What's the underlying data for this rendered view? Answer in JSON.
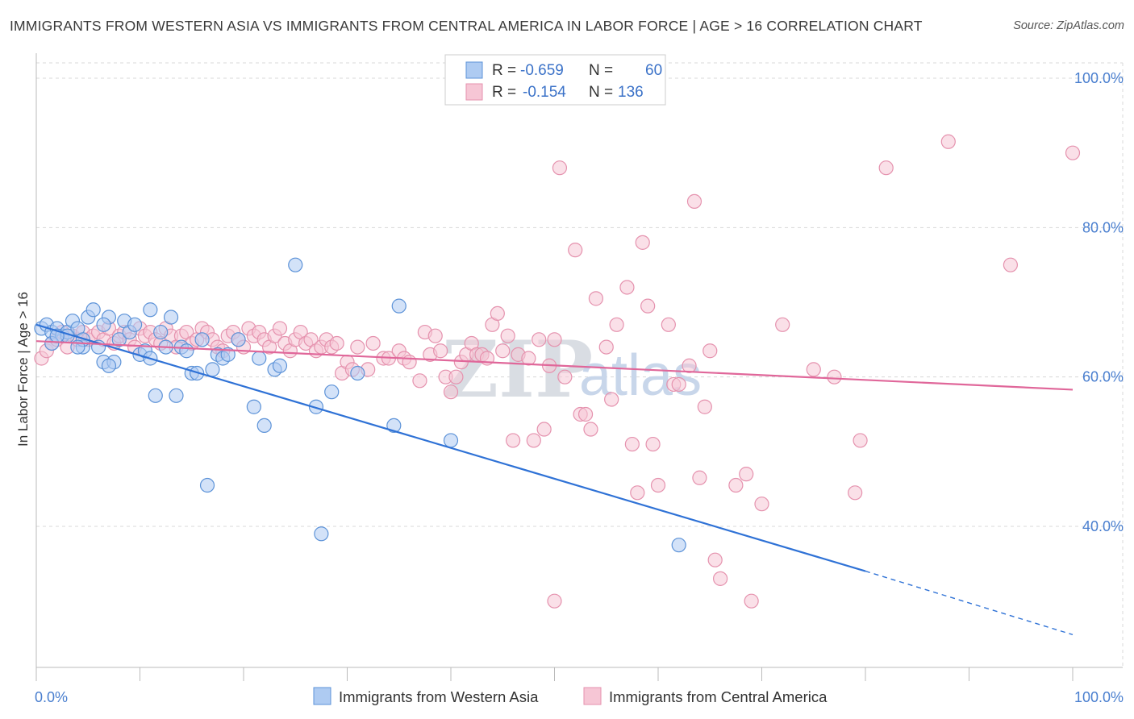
{
  "header": {
    "title": "IMMIGRANTS FROM WESTERN ASIA VS IMMIGRANTS FROM CENTRAL AMERICA IN LABOR FORCE | AGE > 16 CORRELATION CHART",
    "source": "Source: ZipAtlas.com"
  },
  "watermark": {
    "zip": "ZIP",
    "atlas": "atlas"
  },
  "legend": {
    "rows": [
      {
        "r_label": "R =",
        "r_value": "-0.659",
        "n_label": "N =",
        "n_value": "60"
      },
      {
        "r_label": "R =",
        "r_value": "-0.154",
        "n_label": "N =",
        "n_value": "136"
      }
    ]
  },
  "colors": {
    "blue_fill": "#aecbf2",
    "blue_stroke": "#5d93d8",
    "blue_line": "#2f72d6",
    "pink_fill": "#f6c6d5",
    "pink_stroke": "#e592ae",
    "pink_line": "#e0679a",
    "grid": "#d8d8d8",
    "tick_label": "#4a7fcf"
  },
  "chart_data": {
    "type": "scatter",
    "title": "IMMIGRANTS FROM WESTERN ASIA VS IMMIGRANTS FROM CENTRAL AMERICA IN LABOR FORCE | AGE > 16 CORRELATION CHART",
    "xlabel": "",
    "ylabel": "In Labor Force | Age > 16",
    "xlim": [
      0,
      100
    ],
    "ylim": [
      20,
      102
    ],
    "x_ticks": [
      {
        "value": 0,
        "label": "0.0%"
      },
      {
        "value": 100,
        "label": "100.0%"
      }
    ],
    "y_ticks": [
      {
        "value": 40,
        "label": "40.0%"
      },
      {
        "value": 60,
        "label": "60.0%"
      },
      {
        "value": 80,
        "label": "80.0%"
      },
      {
        "value": 100,
        "label": "100.0%"
      }
    ],
    "grid": true,
    "legend_position": "top-center",
    "series": [
      {
        "name": "Immigrants from Western Asia",
        "color": "#aecbf2",
        "points": [
          [
            0.5,
            66.5
          ],
          [
            1,
            67
          ],
          [
            1.5,
            66
          ],
          [
            2,
            66.5
          ],
          [
            2.5,
            65.5
          ],
          [
            3,
            66
          ],
          [
            3.5,
            67.5
          ],
          [
            4,
            66.5
          ],
          [
            4.5,
            64
          ],
          [
            5,
            68
          ],
          [
            4.5,
            65
          ],
          [
            5.5,
            69
          ],
          [
            6,
            64
          ],
          [
            6.5,
            62
          ],
          [
            7,
            68
          ],
          [
            7.5,
            62
          ],
          [
            8,
            65
          ],
          [
            8.5,
            67.5
          ],
          [
            9,
            66
          ],
          [
            9.5,
            67
          ],
          [
            10,
            63
          ],
          [
            10.5,
            63.5
          ],
          [
            11,
            69
          ],
          [
            11.5,
            57.5
          ],
          [
            12,
            66
          ],
          [
            12.5,
            64
          ],
          [
            13,
            68
          ],
          [
            13.5,
            57.5
          ],
          [
            14,
            64
          ],
          [
            14.5,
            63.5
          ],
          [
            15,
            60.5
          ],
          [
            15.5,
            60.5
          ],
          [
            16,
            65
          ],
          [
            16.5,
            45.5
          ],
          [
            17,
            61
          ],
          [
            17.5,
            63
          ],
          [
            18,
            62.5
          ],
          [
            19.5,
            65
          ],
          [
            21,
            56
          ],
          [
            21.5,
            62.5
          ],
          [
            22,
            53.5
          ],
          [
            23,
            61
          ],
          [
            23.5,
            61.5
          ],
          [
            25,
            75
          ],
          [
            27,
            56
          ],
          [
            28.5,
            58
          ],
          [
            27.5,
            39
          ],
          [
            31,
            60.5
          ],
          [
            35,
            69.5
          ],
          [
            34.5,
            53.5
          ],
          [
            40,
            51.5
          ],
          [
            62,
            37.5
          ],
          [
            3,
            65.5
          ],
          [
            1.5,
            64.5
          ],
          [
            6.5,
            67
          ],
          [
            11,
            62.5
          ],
          [
            18.5,
            63
          ],
          [
            7,
            61.5
          ],
          [
            2,
            65.5
          ],
          [
            4,
            64
          ]
        ]
      },
      {
        "name": "Immigrants from Central America",
        "color": "#f6c6d5",
        "points": [
          [
            0.5,
            62.5
          ],
          [
            1,
            63.5
          ],
          [
            1.5,
            64.5
          ],
          [
            2,
            65
          ],
          [
            2.5,
            66
          ],
          [
            3,
            64
          ],
          [
            3.5,
            65.5
          ],
          [
            4,
            65
          ],
          [
            4.5,
            66
          ],
          [
            5,
            65
          ],
          [
            5.5,
            65.5
          ],
          [
            6,
            66
          ],
          [
            6.5,
            65
          ],
          [
            7,
            66.5
          ],
          [
            7.5,
            64.5
          ],
          [
            8,
            65.5
          ],
          [
            8.5,
            66
          ],
          [
            9,
            65
          ],
          [
            9.5,
            64
          ],
          [
            10,
            66.5
          ],
          [
            10.5,
            65.5
          ],
          [
            11,
            66
          ],
          [
            11.5,
            65
          ],
          [
            12,
            64.5
          ],
          [
            12.5,
            66.5
          ],
          [
            13,
            65.5
          ],
          [
            13.5,
            64
          ],
          [
            14,
            65.5
          ],
          [
            14.5,
            66
          ],
          [
            15,
            64.5
          ],
          [
            15.5,
            65
          ],
          [
            16,
            66.5
          ],
          [
            16.5,
            66
          ],
          [
            17,
            65
          ],
          [
            17.5,
            64
          ],
          [
            18,
            63.5
          ],
          [
            18.5,
            65.5
          ],
          [
            19,
            66
          ],
          [
            19.5,
            65
          ],
          [
            20,
            64
          ],
          [
            20.5,
            66.5
          ],
          [
            21,
            65.5
          ],
          [
            21.5,
            66
          ],
          [
            22,
            65
          ],
          [
            22.5,
            64
          ],
          [
            23,
            65.5
          ],
          [
            23.5,
            66.5
          ],
          [
            24,
            64.5
          ],
          [
            24.5,
            63.5
          ],
          [
            25,
            65
          ],
          [
            25.5,
            66
          ],
          [
            26,
            64.5
          ],
          [
            26.5,
            65
          ],
          [
            27,
            63.5
          ],
          [
            27.5,
            64
          ],
          [
            28,
            65
          ],
          [
            28.5,
            64
          ],
          [
            29,
            64.5
          ],
          [
            29.5,
            60.5
          ],
          [
            30,
            62
          ],
          [
            30.5,
            61
          ],
          [
            31,
            64
          ],
          [
            32,
            61
          ],
          [
            32.5,
            64.5
          ],
          [
            33.5,
            62.5
          ],
          [
            34,
            62.5
          ],
          [
            35,
            63.5
          ],
          [
            35.5,
            62.5
          ],
          [
            36,
            62
          ],
          [
            37,
            59.5
          ],
          [
            37.5,
            66
          ],
          [
            38,
            63
          ],
          [
            38.5,
            65.5
          ],
          [
            39,
            63.5
          ],
          [
            39.5,
            60
          ],
          [
            40,
            58
          ],
          [
            40.5,
            60
          ],
          [
            41,
            62
          ],
          [
            41.5,
            63
          ],
          [
            42,
            64.5
          ],
          [
            42.5,
            63
          ],
          [
            43,
            63
          ],
          [
            43.5,
            62.5
          ],
          [
            44,
            67
          ],
          [
            44.5,
            68.5
          ],
          [
            45,
            63.5
          ],
          [
            45.5,
            65.5
          ],
          [
            46,
            51.5
          ],
          [
            46.5,
            63
          ],
          [
            47.5,
            62.5
          ],
          [
            48,
            51.5
          ],
          [
            48.5,
            65
          ],
          [
            49,
            53
          ],
          [
            49.5,
            61.5
          ],
          [
            50,
            65
          ],
          [
            50.5,
            88
          ],
          [
            51,
            60
          ],
          [
            52,
            77
          ],
          [
            52.5,
            55
          ],
          [
            53,
            55
          ],
          [
            53.5,
            53
          ],
          [
            54,
            70.5
          ],
          [
            55,
            64
          ],
          [
            55.5,
            57
          ],
          [
            56,
            67
          ],
          [
            57,
            72
          ],
          [
            57.5,
            51
          ],
          [
            58,
            44.5
          ],
          [
            58.5,
            78
          ],
          [
            59,
            69.5
          ],
          [
            59.5,
            51
          ],
          [
            60,
            45.5
          ],
          [
            61,
            67
          ],
          [
            61.5,
            59
          ],
          [
            62,
            59
          ],
          [
            63,
            61.5
          ],
          [
            63.5,
            83.5
          ],
          [
            64,
            46.5
          ],
          [
            64.5,
            56
          ],
          [
            65,
            63.5
          ],
          [
            65.5,
            35.5
          ],
          [
            66,
            33
          ],
          [
            67.5,
            45.5
          ],
          [
            68.5,
            47
          ],
          [
            69,
            30
          ],
          [
            70,
            43
          ],
          [
            72,
            67
          ],
          [
            75,
            61
          ],
          [
            77,
            60
          ],
          [
            79,
            44.5
          ],
          [
            79.5,
            51.5
          ],
          [
            82,
            88
          ],
          [
            88,
            91.5
          ],
          [
            94,
            75
          ],
          [
            100,
            90
          ],
          [
            50,
            30
          ]
        ]
      }
    ],
    "trendlines": [
      {
        "series": "Immigrants from Western Asia",
        "x_start": 0,
        "y_start": 67,
        "x_solid_end": 80,
        "y_solid_end": 34,
        "x_end": 100,
        "y_end": 25.5
      },
      {
        "series": "Immigrants from Central America",
        "x_start": 0,
        "y_start": 64.8,
        "x_end": 100,
        "y_end": 58.3
      }
    ]
  }
}
